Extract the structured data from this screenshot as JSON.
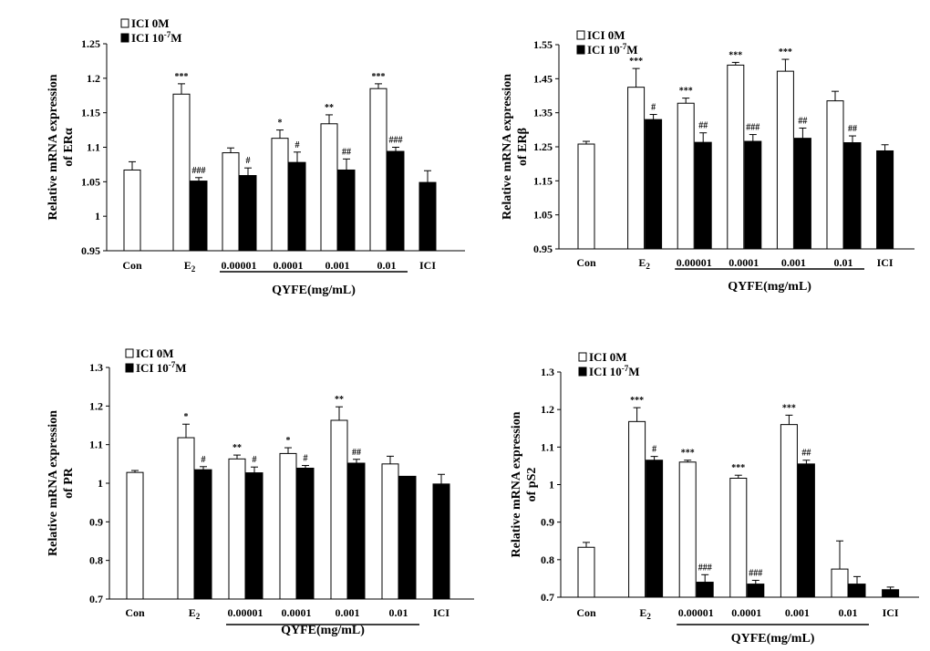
{
  "figure": {
    "series_names": [
      "ICI 0M",
      "ICI 10-7M"
    ],
    "legend_labels": [
      {
        "base": "ICI 0M",
        "sup": ""
      },
      {
        "base": "ICI 10",
        "sup": "-7",
        "tail": "M"
      }
    ],
    "colors": {
      "open": "#ffffff",
      "filled": "#000000",
      "axis": "#000000"
    },
    "group_label": "QYFE(mg/mL)",
    "category_labels": [
      {
        "text": "Con"
      },
      {
        "text": "E",
        "sub": "2"
      },
      {
        "text": "0.00001"
      },
      {
        "text": "0.0001"
      },
      {
        "text": "0.001"
      },
      {
        "text": "0.01"
      },
      {
        "text": "ICI"
      }
    ]
  },
  "chart_data": [
    {
      "type": "bar",
      "title": "",
      "ylabel": [
        "Relative mRNA expression",
        "of ERα"
      ],
      "xlabel": "QYFE(mg/mL)",
      "ylim": [
        0.95,
        1.25
      ],
      "yticks": [
        "0.95",
        "1",
        "1.05",
        "1.1",
        "1.15",
        "1.2",
        "1.25"
      ],
      "categories": [
        "Con",
        "E2",
        "0.00001",
        "0.0001",
        "0.001",
        "0.01",
        "ICI"
      ],
      "series": [
        {
          "name": "ICI 0M",
          "values": [
            1.067,
            1.177,
            1.092,
            1.113,
            1.134,
            1.185,
            null
          ],
          "errors": [
            0.012,
            0.015,
            0.007,
            0.012,
            0.013,
            0.007,
            null
          ],
          "sig": [
            "",
            "***",
            "",
            "*",
            "**",
            "***",
            ""
          ]
        },
        {
          "name": "ICI 10-7M",
          "values": [
            null,
            1.051,
            1.059,
            1.078,
            1.067,
            1.094,
            1.049
          ],
          "errors": [
            null,
            0.005,
            0.011,
            0.015,
            0.016,
            0.006,
            0.017
          ],
          "sig": [
            "",
            "###",
            "#",
            "#",
            "##",
            "###",
            ""
          ]
        }
      ]
    },
    {
      "type": "bar",
      "title": "",
      "ylabel": [
        "Relative mRNA expression",
        "of ERβ"
      ],
      "xlabel": "QYFE(mg/mL)",
      "ylim": [
        0.95,
        1.55
      ],
      "yticks": [
        "0.95",
        "1.05",
        "1.15",
        "1.25",
        "1.35",
        "1.45",
        "1.55"
      ],
      "categories": [
        "Con",
        "E2",
        "0.00001",
        "0.0001",
        "0.001",
        "0.01",
        "ICI"
      ],
      "series": [
        {
          "name": "ICI 0M",
          "values": [
            1.258,
            1.425,
            1.378,
            1.49,
            1.472,
            1.385,
            null
          ],
          "errors": [
            0.008,
            0.055,
            0.015,
            0.008,
            0.035,
            0.028,
            null
          ],
          "sig": [
            "",
            "***",
            "***",
            "***",
            "***",
            "",
            ""
          ]
        },
        {
          "name": "ICI 10-7M",
          "values": [
            null,
            1.33,
            1.263,
            1.266,
            1.275,
            1.262,
            1.238
          ],
          "errors": [
            null,
            0.015,
            0.028,
            0.02,
            0.03,
            0.02,
            0.018
          ],
          "sig": [
            "",
            "#",
            "##",
            "###",
            "##",
            "##",
            ""
          ]
        }
      ]
    },
    {
      "type": "bar",
      "title": "",
      "ylabel": [
        "Relative mRNA expression",
        "of PR"
      ],
      "xlabel": "QYFE(mg/mL)",
      "ylim": [
        0.7,
        1.3
      ],
      "yticks": [
        "0.7",
        "0.8",
        "0.9",
        "1",
        "1.1",
        "1.2",
        "1.3"
      ],
      "categories": [
        "Con",
        "E2",
        "0.00001",
        "0.0001",
        "0.001",
        "0.01",
        "ICI"
      ],
      "series": [
        {
          "name": "ICI 0M",
          "values": [
            1.028,
            1.118,
            1.063,
            1.077,
            1.163,
            1.05,
            null
          ],
          "errors": [
            0.005,
            0.035,
            0.01,
            0.015,
            0.035,
            0.02,
            null
          ],
          "sig": [
            "",
            "*",
            "**",
            "*",
            "**",
            "",
            ""
          ]
        },
        {
          "name": "ICI 10-7M",
          "values": [
            null,
            1.035,
            1.027,
            1.039,
            1.052,
            1.018,
            0.998
          ],
          "errors": [
            null,
            0.008,
            0.015,
            0.007,
            0.01,
            null,
            0.025
          ],
          "sig": [
            "",
            "#",
            "#",
            "#",
            "##",
            "",
            ""
          ]
        }
      ]
    },
    {
      "type": "bar",
      "title": "",
      "ylabel": [
        "Relative mRNA expression",
        "of pS2"
      ],
      "xlabel": "QYFE(mg/mL)",
      "ylim": [
        0.7,
        1.3
      ],
      "yticks": [
        "0.7",
        "0.8",
        "0.9",
        "1",
        "1.1",
        "1.2",
        "1.3"
      ],
      "categories": [
        "Con",
        "E2",
        "0.00001",
        "0.0001",
        "0.001",
        "0.01",
        "ICI"
      ],
      "series": [
        {
          "name": "ICI 0M",
          "values": [
            0.833,
            1.168,
            1.06,
            1.017,
            1.16,
            0.775,
            null
          ],
          "errors": [
            0.013,
            0.037,
            0.005,
            0.008,
            0.025,
            0.075,
            null
          ],
          "sig": [
            "",
            "***",
            "***",
            "***",
            "***",
            "",
            ""
          ]
        },
        {
          "name": "ICI 10-7M",
          "values": [
            null,
            1.065,
            0.74,
            0.735,
            1.055,
            0.735,
            0.72
          ],
          "errors": [
            null,
            0.01,
            0.02,
            0.01,
            0.01,
            0.02,
            0.007
          ],
          "sig": [
            "",
            "#",
            "###",
            "###",
            "##",
            "",
            ""
          ]
        }
      ]
    }
  ]
}
